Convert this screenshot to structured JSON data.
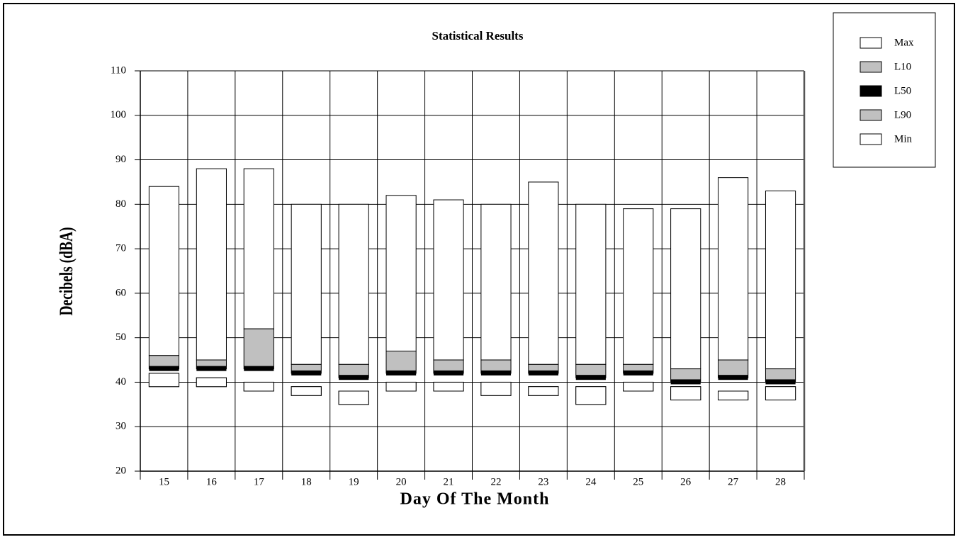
{
  "chart_data": {
    "type": "range-bar",
    "title": "Statistical Results",
    "x_label": "Day Of The Month",
    "y_label": "Decibels (dBA)",
    "categories": [
      "15",
      "16",
      "17",
      "18",
      "19",
      "20",
      "21",
      "22",
      "23",
      "24",
      "25",
      "26",
      "27",
      "28"
    ],
    "series": [
      {
        "name": "Max",
        "color": "#ffffff",
        "values": [
          84,
          88,
          88,
          80,
          80,
          82,
          81,
          80,
          85,
          80,
          79,
          79,
          86,
          83
        ]
      },
      {
        "name": "L10",
        "color": "#c0c0c0",
        "values": [
          46,
          45,
          52,
          44,
          44,
          47,
          45,
          45,
          44,
          44,
          44,
          43,
          45,
          43
        ]
      },
      {
        "name": "L50",
        "color": "#000000",
        "values": [
          43,
          43,
          43,
          42,
          41,
          42,
          42,
          42,
          42,
          41,
          42,
          40,
          41,
          40
        ]
      },
      {
        "name": "L90",
        "color": "#c0c0c0",
        "values": [
          42,
          41,
          40,
          39,
          38,
          40,
          40,
          40,
          39,
          39,
          40,
          39,
          38,
          39
        ]
      },
      {
        "name": "Min",
        "color": "#ffffff",
        "values": [
          39,
          39,
          38,
          37,
          35,
          38,
          38,
          37,
          37,
          35,
          38,
          36,
          36,
          36
        ]
      }
    ],
    "ylim": [
      20,
      110
    ],
    "yticks": [
      20,
      30,
      40,
      50,
      60,
      70,
      80,
      90,
      100,
      110
    ],
    "grid": true,
    "legend": "top-right"
  }
}
